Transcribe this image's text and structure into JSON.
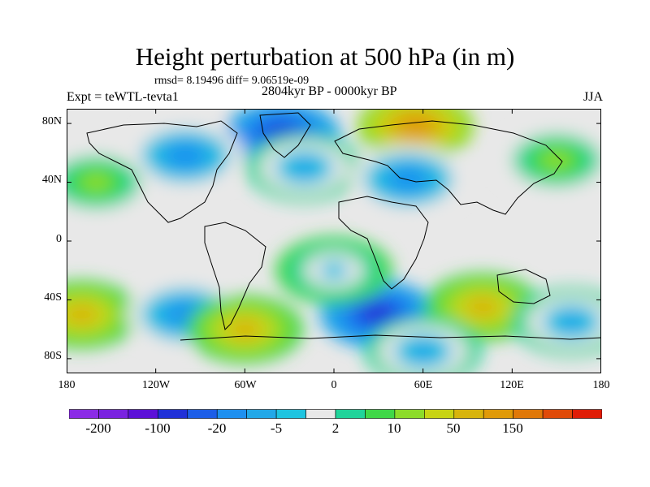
{
  "title": "Height perturbation at 500 hPa (in m)",
  "stats": "rmsd= 8.19496 diff= 9.06519e-09",
  "experiment": "Expt = teWTL-tevta1",
  "period": "2804kyr BP - 0000kyr BP",
  "season": "JJA",
  "map": {
    "projection": "cylindrical-equidistant",
    "lon_range": [
      -180,
      180
    ],
    "lat_range": [
      -90,
      90
    ],
    "coastlines": true
  },
  "axes": {
    "lat_ticks": [
      {
        "value": 80,
        "label": "80N"
      },
      {
        "value": 40,
        "label": "40N"
      },
      {
        "value": 0,
        "label": "0"
      },
      {
        "value": -40,
        "label": "40S"
      },
      {
        "value": -80,
        "label": "80S"
      }
    ],
    "lon_ticks": [
      {
        "value": -180,
        "label": "180"
      },
      {
        "value": -120,
        "label": "120W"
      },
      {
        "value": -60,
        "label": "60W"
      },
      {
        "value": 0,
        "label": "0"
      },
      {
        "value": 60,
        "label": "60E"
      },
      {
        "value": 120,
        "label": "120E"
      },
      {
        "value": 180,
        "label": "180"
      }
    ]
  },
  "colorbar": {
    "colors": [
      "#8b2be6",
      "#7a22e0",
      "#5c10d8",
      "#2030d8",
      "#1c5ee8",
      "#1e90f0",
      "#22a8e8",
      "#1ec4e0",
      "#e8e8e8",
      "#20d49a",
      "#40d848",
      "#8cdc2a",
      "#c8d414",
      "#d8b40c",
      "#e09a08",
      "#e07808",
      "#e04a08",
      "#e01c06"
    ],
    "labels": [
      {
        "boundary": 1,
        "text": "-200"
      },
      {
        "boundary": 3,
        "text": "-100"
      },
      {
        "boundary": 5,
        "text": "-20"
      },
      {
        "boundary": 7,
        "text": "-5"
      },
      {
        "boundary": 9,
        "text": "2"
      },
      {
        "boundary": 11,
        "text": "10"
      },
      {
        "boundary": 13,
        "text": "50"
      },
      {
        "boundary": 15,
        "text": "150"
      }
    ]
  },
  "anomalies": [
    {
      "lon": -35,
      "lat": 72,
      "level": 3
    },
    {
      "lon": -100,
      "lat": 58,
      "level": 5
    },
    {
      "lon": -20,
      "lat": 50,
      "level": 6
    },
    {
      "lon": 55,
      "lat": 78,
      "level": 14
    },
    {
      "lon": 50,
      "lat": 42,
      "level": 5
    },
    {
      "lon": -160,
      "lat": 40,
      "level": 11
    },
    {
      "lon": 150,
      "lat": 55,
      "level": 11
    },
    {
      "lon": -170,
      "lat": -50,
      "level": 13
    },
    {
      "lon": -100,
      "lat": -50,
      "level": 5
    },
    {
      "lon": -60,
      "lat": -60,
      "level": 13
    },
    {
      "lon": 30,
      "lat": -50,
      "level": 3
    },
    {
      "lon": 100,
      "lat": -45,
      "level": 13
    },
    {
      "lon": 160,
      "lat": -55,
      "level": 6
    },
    {
      "lon": 60,
      "lat": -75,
      "level": 6
    },
    {
      "lon": 0,
      "lat": -20,
      "level": 7
    }
  ]
}
